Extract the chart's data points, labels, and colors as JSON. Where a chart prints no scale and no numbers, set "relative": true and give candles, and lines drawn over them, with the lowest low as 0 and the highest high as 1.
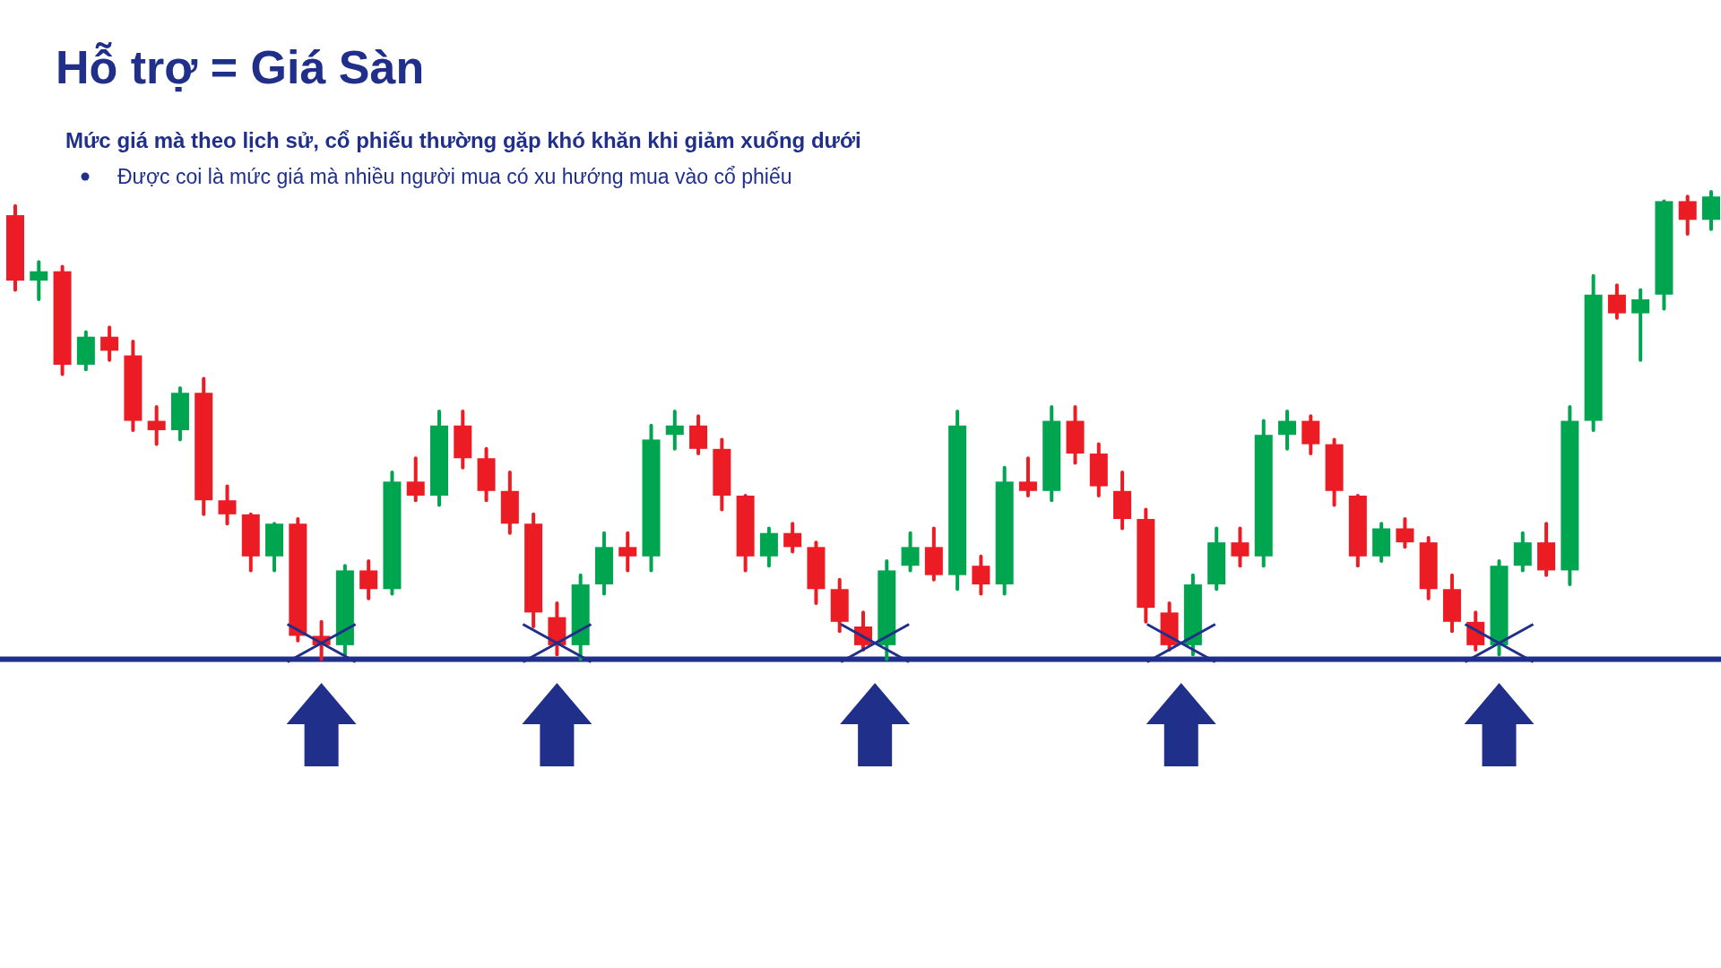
{
  "chart_data": {
    "type": "candlestick",
    "title": "Hỗ trợ  = Giá Sàn",
    "subtitle": "Mức giá mà theo lịch sử, cổ phiếu thường gặp khó khăn khi giảm xuống dưới",
    "annotations": [
      "Được coi là mức giá mà nhiều người mua có xu hướng mua vào cổ phiếu"
    ],
    "relative": true,
    "categories": [
      null,
      null,
      null,
      null,
      null,
      null,
      null,
      null,
      null,
      null,
      null,
      null,
      null,
      null,
      null,
      null,
      null,
      null,
      null,
      null,
      null,
      null,
      null,
      null,
      null,
      null,
      null,
      null,
      null,
      null,
      null,
      null,
      null,
      null,
      null,
      null,
      null,
      null,
      null,
      null,
      null,
      null,
      null,
      null,
      null,
      null,
      null,
      null,
      null,
      null,
      null,
      null,
      null,
      null,
      null,
      null,
      null,
      null,
      null,
      null,
      null,
      null,
      null,
      null,
      null,
      null,
      null,
      null,
      null,
      null,
      null,
      null,
      null
    ],
    "ohlc": [
      [
        0.95,
        0.97,
        0.79,
        0.81
      ],
      [
        0.81,
        0.85,
        0.77,
        0.83
      ],
      [
        0.83,
        0.84,
        0.61,
        0.63
      ],
      [
        0.63,
        0.7,
        0.62,
        0.69
      ],
      [
        0.69,
        0.71,
        0.64,
        0.66
      ],
      [
        0.65,
        0.68,
        0.49,
        0.51
      ],
      [
        0.51,
        0.54,
        0.46,
        0.49
      ],
      [
        0.49,
        0.58,
        0.47,
        0.57
      ],
      [
        0.57,
        0.6,
        0.31,
        0.34
      ],
      [
        0.34,
        0.37,
        0.29,
        0.31
      ],
      [
        0.31,
        0.31,
        0.19,
        0.22
      ],
      [
        0.22,
        0.29,
        0.19,
        0.29
      ],
      [
        0.29,
        0.3,
        0.04,
        0.05
      ],
      [
        0.05,
        0.08,
        0,
        0.03
      ],
      [
        0.03,
        0.2,
        0.01,
        0.19
      ],
      [
        0.19,
        0.21,
        0.13,
        0.15
      ],
      [
        0.15,
        0.4,
        0.14,
        0.38
      ],
      [
        0.38,
        0.43,
        0.34,
        0.35
      ],
      [
        0.35,
        0.53,
        0.33,
        0.5
      ],
      [
        0.5,
        0.53,
        0.41,
        0.43
      ],
      [
        0.43,
        0.45,
        0.34,
        0.36
      ],
      [
        0.36,
        0.4,
        0.27,
        0.29
      ],
      [
        0.29,
        0.31,
        0.07,
        0.1
      ],
      [
        0.09,
        0.12,
        0.01,
        0.03
      ],
      [
        0.03,
        0.18,
        0,
        0.16
      ],
      [
        0.16,
        0.27,
        0.14,
        0.24
      ],
      [
        0.24,
        0.27,
        0.19,
        0.22
      ],
      [
        0.22,
        0.5,
        0.19,
        0.47
      ],
      [
        0.48,
        0.53,
        0.45,
        0.5
      ],
      [
        0.5,
        0.52,
        0.44,
        0.45
      ],
      [
        0.45,
        0.47,
        0.32,
        0.35
      ],
      [
        0.35,
        0.35,
        0.19,
        0.22
      ],
      [
        0.22,
        0.28,
        0.2,
        0.27
      ],
      [
        0.27,
        0.29,
        0.23,
        0.24
      ],
      [
        0.24,
        0.25,
        0.12,
        0.15
      ],
      [
        0.15,
        0.17,
        0.06,
        0.08
      ],
      [
        0.07,
        0.1,
        0.02,
        0.03
      ],
      [
        0.03,
        0.21,
        0,
        0.19
      ],
      [
        0.2,
        0.27,
        0.19,
        0.24
      ],
      [
        0.24,
        0.28,
        0.17,
        0.18
      ],
      [
        0.18,
        0.53,
        0.15,
        0.5
      ],
      [
        0.2,
        0.22,
        0.14,
        0.16
      ],
      [
        0.16,
        0.41,
        0.14,
        0.38
      ],
      [
        0.38,
        0.43,
        0.35,
        0.36
      ],
      [
        0.36,
        0.54,
        0.34,
        0.51
      ],
      [
        0.51,
        0.54,
        0.42,
        0.44
      ],
      [
        0.44,
        0.46,
        0.35,
        0.37
      ],
      [
        0.36,
        0.4,
        0.28,
        0.3
      ],
      [
        0.3,
        0.32,
        0.08,
        0.11
      ],
      [
        0.1,
        0.12,
        0.02,
        0.03
      ],
      [
        0.03,
        0.18,
        0.01,
        0.16
      ],
      [
        0.16,
        0.28,
        0.15,
        0.25
      ],
      [
        0.25,
        0.28,
        0.2,
        0.22
      ],
      [
        0.22,
        0.51,
        0.2,
        0.48
      ],
      [
        0.48,
        0.53,
        0.45,
        0.51
      ],
      [
        0.51,
        0.52,
        0.44,
        0.46
      ],
      [
        0.46,
        0.47,
        0.33,
        0.36
      ],
      [
        0.35,
        0.35,
        0.2,
        0.22
      ],
      [
        0.22,
        0.29,
        0.21,
        0.28
      ],
      [
        0.28,
        0.3,
        0.24,
        0.25
      ],
      [
        0.25,
        0.26,
        0.13,
        0.15
      ],
      [
        0.15,
        0.18,
        0.06,
        0.08
      ],
      [
        0.08,
        0.1,
        0.02,
        0.03
      ],
      [
        0.03,
        0.21,
        0.01,
        0.2
      ],
      [
        0.2,
        0.27,
        0.19,
        0.25
      ],
      [
        0.25,
        0.29,
        0.18,
        0.19
      ],
      [
        0.19,
        0.54,
        0.16,
        0.51
      ],
      [
        0.51,
        0.82,
        0.49,
        0.78
      ],
      [
        0.78,
        0.8,
        0.73,
        0.74
      ],
      [
        0.74,
        0.79,
        0.64,
        0.77
      ],
      [
        0.78,
        0.98,
        0.75,
        0.98
      ],
      [
        0.98,
        0.99,
        0.91,
        0.94
      ],
      [
        0.94,
        1,
        0.92,
        0.99
      ]
    ],
    "colors": [
      "#ec1c24",
      "#00a550",
      "#ec1c24",
      "#00a550",
      "#ec1c24",
      "#ec1c24",
      "#ec1c24",
      "#00a550",
      "#ec1c24",
      "#ec1c24",
      "#ec1c24",
      "#00a550",
      "#ec1c24",
      "#ec1c24",
      "#00a550",
      "#ec1c24",
      "#00a550",
      "#ec1c24",
      "#00a550",
      "#ec1c24",
      "#ec1c24",
      "#ec1c24",
      "#ec1c24",
      "#ec1c24",
      "#00a550",
      "#00a550",
      "#ec1c24",
      "#00a550",
      "#00a550",
      "#ec1c24",
      "#ec1c24",
      "#ec1c24",
      "#00a550",
      "#ec1c24",
      "#ec1c24",
      "#ec1c24",
      "#ec1c24",
      "#00a550",
      "#00a550",
      "#ec1c24",
      "#00a550",
      "#ec1c24",
      "#00a550",
      "#ec1c24",
      "#00a550",
      "#ec1c24",
      "#ec1c24",
      "#ec1c24",
      "#ec1c24",
      "#ec1c24",
      "#00a550",
      "#00a550",
      "#ec1c24",
      "#00a550",
      "#00a550",
      "#ec1c24",
      "#ec1c24",
      "#ec1c24",
      "#00a550",
      "#ec1c24",
      "#ec1c24",
      "#ec1c24",
      "#ec1c24",
      "#00a550",
      "#00a550",
      "#ec1c24",
      "#00a550",
      "#00a550",
      "#ec1c24",
      "#00a550",
      "#00a550",
      "#ec1c24",
      "#00a550"
    ],
    "ref_lines": [
      {
        "axis": "y",
        "value": 0,
        "color": "#1f2f8a"
      }
    ]
  }
}
